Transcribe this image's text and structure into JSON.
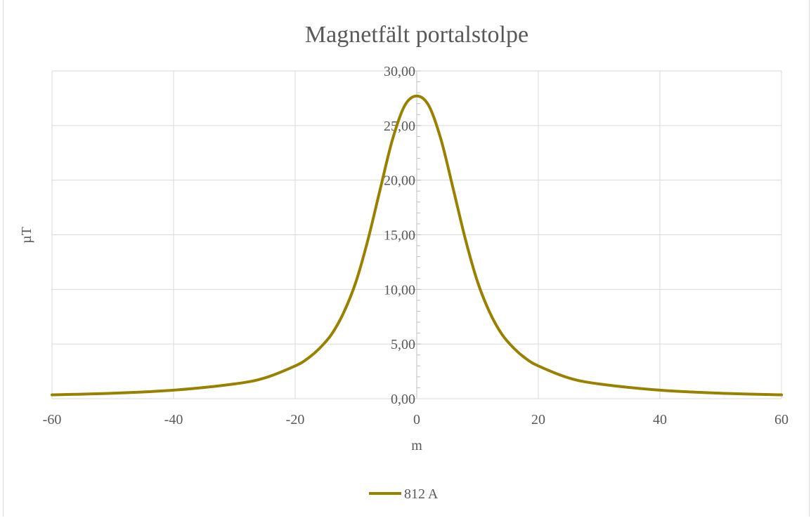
{
  "chart_data": {
    "type": "line",
    "title": "Magnetfält portalstolpe",
    "xlabel": "m",
    "ylabel": "µT",
    "xlim": [
      -60,
      60
    ],
    "ylim": [
      0,
      30
    ],
    "x_ticks": [
      "-60",
      "-40",
      "-20",
      "0",
      "20",
      "40",
      "60"
    ],
    "y_ticks": [
      "0,00",
      "5,00",
      "10,00",
      "15,00",
      "20,00",
      "25,00",
      "30,00"
    ],
    "grid": true,
    "legend_position": "bottom",
    "series": [
      {
        "name": "812 A",
        "color": "#998100",
        "x": [
          -60,
          -50,
          -40,
          -30,
          -25,
          -20,
          -18,
          -16,
          -14,
          -12,
          -10,
          -8,
          -6,
          -4,
          -2,
          0,
          2,
          4,
          6,
          8,
          10,
          12,
          14,
          16,
          18,
          20,
          25,
          30,
          40,
          50,
          60
        ],
        "y": [
          0.35,
          0.5,
          0.78,
          1.35,
          1.9,
          3.0,
          3.65,
          4.6,
          5.9,
          7.9,
          10.7,
          14.6,
          19.2,
          23.7,
          26.8,
          27.7,
          26.8,
          23.7,
          19.2,
          14.6,
          10.7,
          7.9,
          5.9,
          4.6,
          3.65,
          3.0,
          1.9,
          1.35,
          0.78,
          0.5,
          0.35
        ]
      }
    ]
  }
}
